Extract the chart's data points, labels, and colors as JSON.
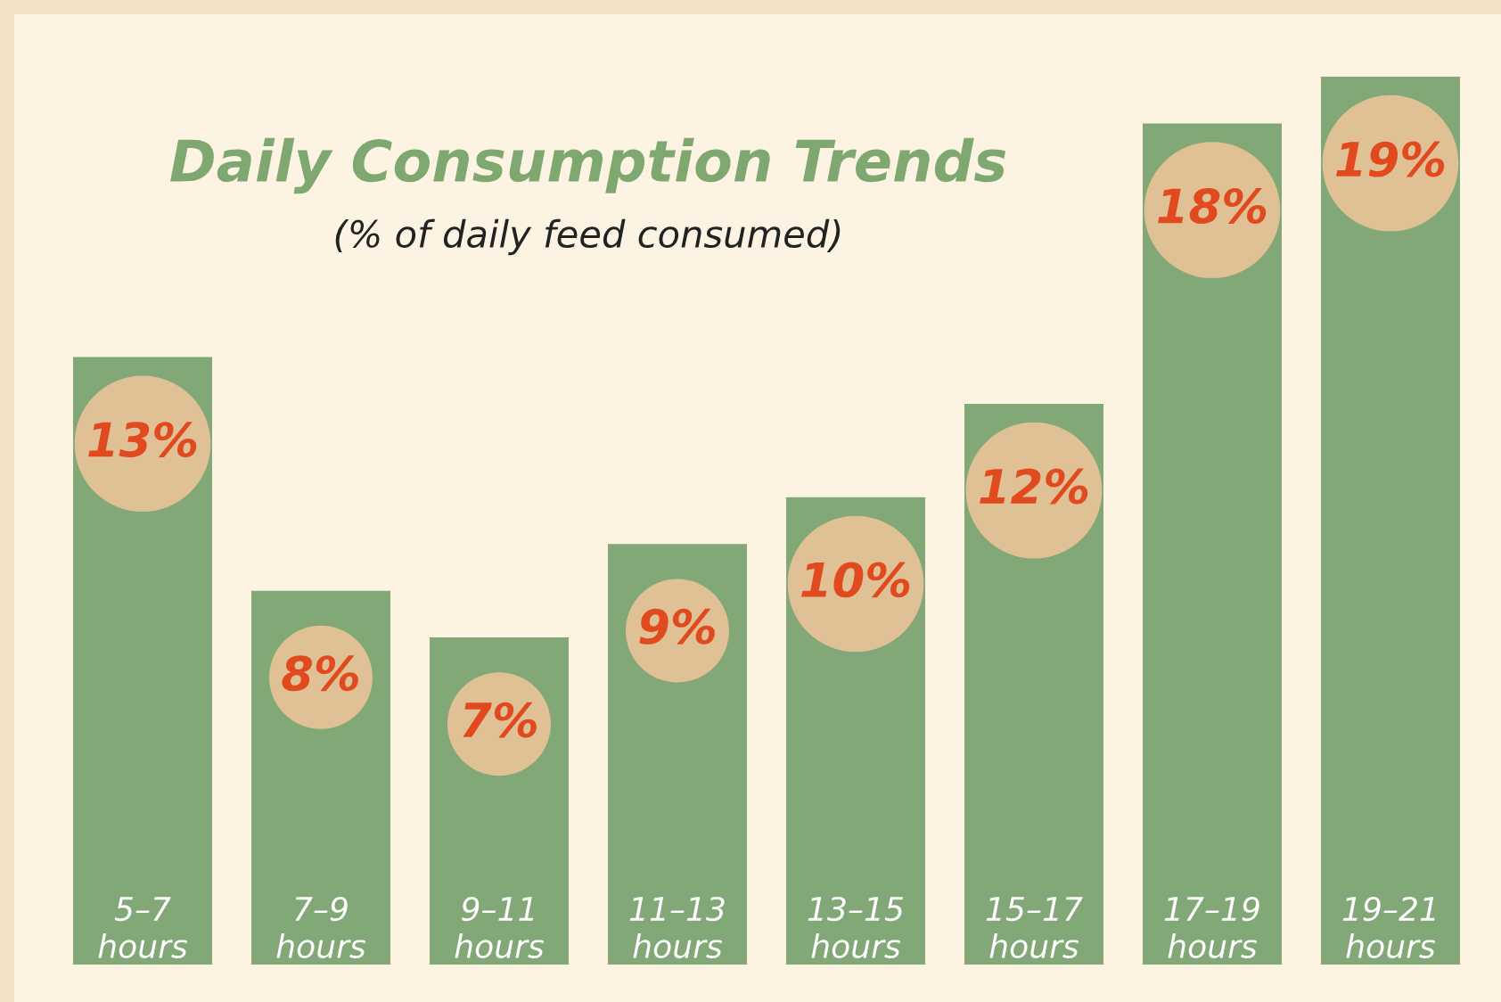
{
  "chart_data": {
    "type": "bar",
    "title": "Daily Consumption Trends",
    "subtitle": "(% of daily feed consumed)",
    "categories": [
      "5–7\nhours",
      "7–9\nhours",
      "9–11\nhours",
      "11–13\nhours",
      "13–15\nhours",
      "15–17\nhours",
      "17–19\nhours",
      "19–21\nhours"
    ],
    "values": [
      13,
      8,
      7,
      9,
      10,
      12,
      18,
      19
    ],
    "value_labels": [
      "13%",
      "8%",
      "7%",
      "9%",
      "10%",
      "12%",
      "18%",
      "19%"
    ],
    "color": "#82a878"
  }
}
